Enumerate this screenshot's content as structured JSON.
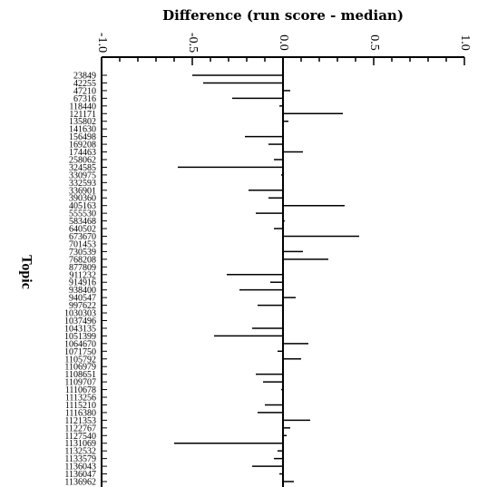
{
  "chart_data": {
    "type": "bar",
    "orientation": "horizontal",
    "title": "Difference (run score - median)",
    "xlabel": "",
    "ylabel": "Topic",
    "xlim": [
      -1.0,
      1.0
    ],
    "x_ticks": [
      "-1.0",
      "-0.5",
      "0.0",
      "0.5",
      "1.0"
    ],
    "x_tick_values": [
      -1.0,
      -0.5,
      0.0,
      0.5,
      1.0
    ],
    "x_tick_rotation": "90deg, axis ticks at top",
    "grid": false,
    "categories": [
      "23849",
      "42255",
      "47210",
      "67316",
      "118440",
      "121171",
      "135802",
      "141630",
      "156498",
      "169208",
      "174463",
      "258062",
      "324585",
      "330975",
      "332593",
      "336901",
      "390360",
      "405163",
      "555530",
      "583468",
      "640502",
      "673670",
      "701453",
      "730539",
      "768208",
      "877809",
      "911232",
      "914916",
      "938400",
      "940547",
      "997622",
      "1030303",
      "1037496",
      "1043135",
      "1051399",
      "1064670",
      "1071750",
      "1105792",
      "1106979",
      "1108651",
      "1109707",
      "1110678",
      "1113256",
      "1115210",
      "1116380",
      "1121353",
      "1122767",
      "1127540",
      "1131069",
      "1132532",
      "1133579",
      "1136043",
      "1136047",
      "1136962"
    ],
    "values": [
      -0.5,
      -0.44,
      0.04,
      -0.28,
      -0.02,
      0.33,
      0.03,
      0.0,
      -0.21,
      -0.08,
      0.11,
      -0.05,
      -0.58,
      -0.01,
      0.0,
      -0.19,
      -0.08,
      0.34,
      -0.15,
      0.01,
      -0.05,
      0.42,
      0.0,
      0.11,
      0.25,
      0.0,
      -0.31,
      -0.07,
      -0.24,
      0.07,
      -0.14,
      0.0,
      0.0,
      -0.17,
      -0.38,
      0.14,
      -0.03,
      0.1,
      0.0,
      -0.15,
      -0.11,
      -0.01,
      0.0,
      -0.1,
      -0.14,
      0.15,
      0.04,
      0.02,
      -0.6,
      -0.03,
      -0.05,
      -0.17,
      -0.02,
      0.06
    ],
    "bar_color": "#000000"
  }
}
